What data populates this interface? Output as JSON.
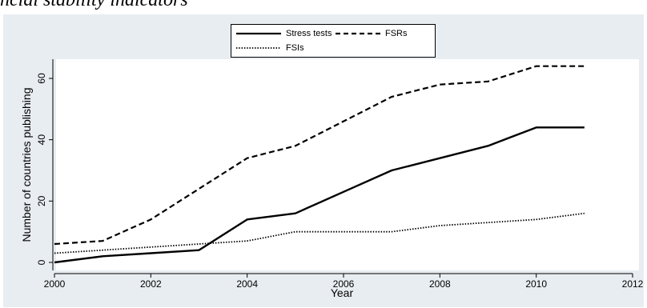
{
  "header": {
    "caption": "ncial stability indicators"
  },
  "chart_data": {
    "type": "line",
    "title": "",
    "xlabel": "Year",
    "ylabel": "Number of countries publishing",
    "xlim": [
      2000,
      2012
    ],
    "ylim": [
      0,
      66
    ],
    "xticks": [
      2000,
      2002,
      2004,
      2006,
      2008,
      2010,
      2012
    ],
    "yticks": [
      0,
      20,
      40,
      60
    ],
    "legend_position": "top-center",
    "grid": false,
    "x": [
      2000,
      2001,
      2002,
      2003,
      2004,
      2005,
      2006,
      2007,
      2008,
      2009,
      2010,
      2011
    ],
    "series": [
      {
        "name": "Stress tests",
        "style": "solid",
        "values": [
          0,
          2,
          3,
          4,
          14,
          16,
          23,
          30,
          34,
          38,
          44,
          44
        ]
      },
      {
        "name": "FSRs",
        "style": "dashed",
        "values": [
          6,
          7,
          14,
          24,
          34,
          38,
          46,
          54,
          58,
          59,
          64,
          64
        ]
      },
      {
        "name": "FSIs",
        "style": "dotted",
        "values": [
          3,
          4,
          5,
          6,
          7,
          10,
          10,
          10,
          12,
          13,
          14,
          16
        ]
      }
    ],
    "colors": {
      "plot_background": "#ffffff",
      "outer_background": "#e8edf1",
      "line": "#000000"
    }
  }
}
